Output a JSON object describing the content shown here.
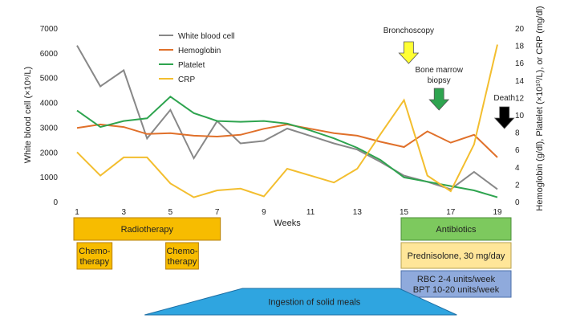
{
  "chart_data": {
    "type": "line",
    "xlabel": "Weeks",
    "ylabel_left": "White blood cell (×10⁶/L)",
    "ylabel_right": "Hemoglobin (g/dl), Platelet (×10¹⁰/L), or CRP (mg/dl)",
    "x_ticks": [
      1,
      3,
      5,
      7,
      9,
      11,
      13,
      15,
      17,
      19
    ],
    "x_range": [
      1,
      19
    ],
    "y_left_range": [
      0,
      7000
    ],
    "y_left_ticks": [
      0,
      1000,
      2000,
      3000,
      4000,
      5000,
      6000,
      7000
    ],
    "y_right_range": [
      0,
      20
    ],
    "y_right_ticks": [
      0,
      2,
      4,
      6,
      8,
      10,
      12,
      14,
      16,
      18,
      20
    ],
    "grid": false,
    "legend_position": "top-left",
    "x": [
      1,
      2,
      3,
      4,
      5,
      6,
      7,
      8,
      9,
      10,
      11,
      12,
      13,
      14,
      15,
      16,
      17,
      18,
      19
    ],
    "series": [
      {
        "name": "White blood cell",
        "axis": "left",
        "color": "#888888",
        "values": [
          6300,
          4650,
          5300,
          2550,
          3700,
          1750,
          3250,
          2350,
          2450,
          2950,
          2650,
          2350,
          2100,
          1600,
          1050,
          800,
          500,
          1200,
          500
        ]
      },
      {
        "name": "Hemoglobin",
        "axis": "right",
        "color": "#E0702A",
        "values": [
          8.5,
          8.9,
          8.6,
          7.8,
          7.9,
          7.6,
          7.5,
          7.7,
          8.4,
          8.9,
          8.4,
          7.9,
          7.6,
          6.9,
          6.3,
          8.1,
          6.8,
          7.7,
          5.1
        ]
      },
      {
        "name": "Platelet",
        "axis": "right",
        "color": "#2EA44F",
        "values": [
          10.5,
          8.6,
          9.3,
          9.6,
          12.1,
          10.2,
          9.3,
          9.2,
          9.3,
          9.0,
          8.2,
          7.3,
          6.2,
          4.8,
          2.8,
          2.3,
          1.8,
          1.3,
          0.5
        ]
      },
      {
        "name": "CRP",
        "axis": "right",
        "color": "#F3BE2F",
        "values": [
          5.7,
          3.0,
          5.1,
          5.1,
          2.1,
          0.5,
          1.3,
          1.5,
          0.6,
          3.8,
          3.0,
          2.2,
          3.8,
          7.8,
          11.7,
          3.0,
          1.2,
          6.6,
          18.1
        ]
      }
    ],
    "annotations": [
      {
        "text": "Bronchoscopy",
        "week": 15.2,
        "arrow_color": "#FFFF33"
      },
      {
        "text": "Bone marrow biopsy",
        "week": 16.5,
        "arrow_color": "#2EA44F"
      },
      {
        "text": "Death",
        "week": 19.3,
        "arrow_color": "#000000"
      }
    ],
    "treatments": [
      {
        "label": "Radiotherapy",
        "start": 1,
        "end": 7,
        "row": 0,
        "color": "#F7BC00",
        "border": "#B77F00",
        "shape": "rect"
      },
      {
        "label": "Chemo-therapy",
        "start": 1,
        "end": 2.5,
        "row": 1,
        "color": "#F7BC00",
        "border": "#B77F00",
        "shape": "rect"
      },
      {
        "label": "Chemo-therapy",
        "start": 4.8,
        "end": 6.2,
        "row": 1,
        "color": "#F7BC00",
        "border": "#B77F00",
        "shape": "rect"
      },
      {
        "label": "Antibiotics",
        "start": 15,
        "end": 19,
        "row": 0,
        "color": "#7DC95E",
        "border": "#4C8F3A",
        "shape": "rect"
      },
      {
        "label": "Prednisolone, 30 mg/day",
        "start": 15,
        "end": 19,
        "row": 1,
        "color": "#FFE699",
        "border": "#B7A04F",
        "shape": "rect"
      },
      {
        "label": "RBC 2-4 units/week\nBPT 10-20 units/week",
        "start": 15,
        "end": 19,
        "row": 2,
        "color": "#8FAADC",
        "border": "#4A6EAA",
        "shape": "rect"
      },
      {
        "label": "Ingestion of solid meals",
        "start": 6.3,
        "end": 15.2,
        "row": 3,
        "color": "#2FA5E0",
        "border": "#1D6FA5",
        "shape": "trapezoid"
      }
    ]
  }
}
